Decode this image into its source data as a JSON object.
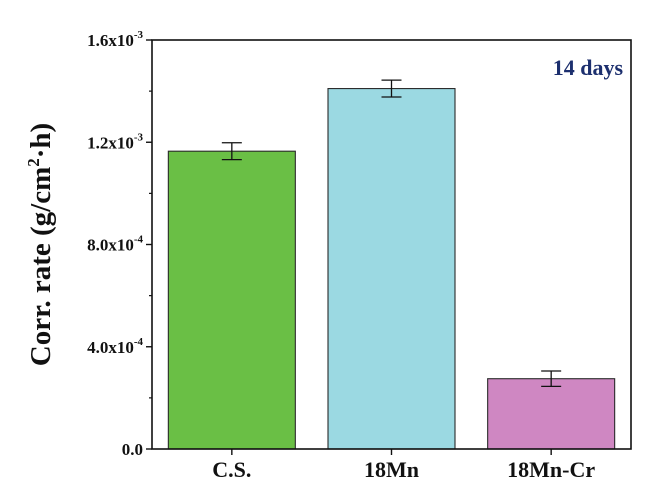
{
  "chart_data": {
    "type": "bar",
    "categories": [
      "C.S.",
      "18Mn",
      "18Mn-Cr"
    ],
    "values": [
      0.001165,
      0.00141,
      0.000275
    ],
    "errors": [
      3.3e-05,
      3.3e-05,
      3e-05
    ],
    "bar_colors": [
      "#6abf45",
      "#9bd9e2",
      "#cf87c2"
    ],
    "ylim": [
      0,
      0.0016
    ],
    "yticks": [
      0,
      0.0004,
      0.0008,
      0.0012,
      0.0016
    ],
    "ytick_labels": [
      {
        "mantissa": "0.0",
        "exponent": ""
      },
      {
        "mantissa": "4.0x10",
        "exponent": "-4"
      },
      {
        "mantissa": "8.0x10",
        "exponent": "-4"
      },
      {
        "mantissa": "1.2x10",
        "exponent": "-3"
      },
      {
        "mantissa": "1.6x10",
        "exponent": "-3"
      }
    ],
    "ylabel": {
      "main": "Corr. rate (g/cm",
      "sup": "2",
      "tail": "·h)"
    },
    "xlabel": "",
    "title": "",
    "annotation": {
      "text": "14 days",
      "color": "#1c2f6e"
    },
    "grid": false
  }
}
